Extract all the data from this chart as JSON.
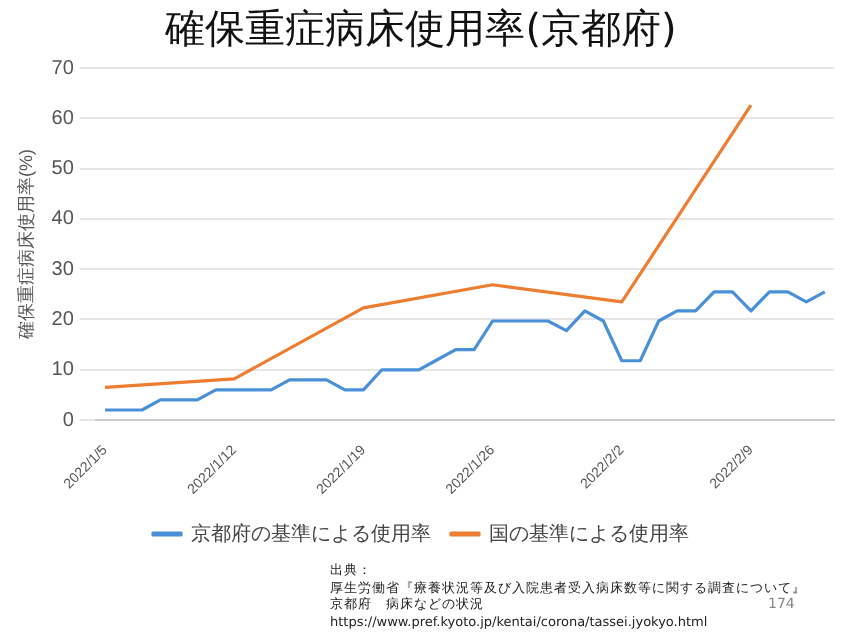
{
  "chart_data": {
    "type": "line",
    "title": "確保重症病床使用率(京都府)",
    "ylabel": "確保重症病床使用率(%)",
    "categories": [
      "2022/1/5",
      null,
      null,
      null,
      null,
      null,
      null,
      "2022/1/12",
      null,
      null,
      null,
      null,
      null,
      null,
      "2022/1/19",
      null,
      null,
      null,
      null,
      null,
      null,
      "2022/1/26",
      null,
      null,
      null,
      null,
      null,
      null,
      "2022/2/2",
      null,
      null,
      null,
      null,
      null,
      null,
      "2022/2/9",
      null,
      null,
      null,
      null
    ],
    "series": [
      {
        "name": "京都府の基準による使用率",
        "color": "#4a90d9",
        "values": [
          2,
          2,
          2,
          4,
          4,
          4,
          6,
          6,
          6,
          6,
          8,
          8,
          8,
          6,
          6,
          10,
          10,
          10,
          12,
          14,
          14,
          19.7,
          19.7,
          19.7,
          19.7,
          17.8,
          21.7,
          19.7,
          11.8,
          11.8,
          19.7,
          21.7,
          21.7,
          25.5,
          25.5,
          21.7,
          25.5,
          25.5,
          23.5,
          25.5
        ]
      },
      {
        "name": "国の基準による使用率",
        "color": "#ed7d31",
        "values": [
          6.5,
          null,
          null,
          null,
          null,
          null,
          null,
          8.2,
          null,
          null,
          null,
          null,
          null,
          null,
          22.3,
          null,
          null,
          null,
          null,
          null,
          null,
          26.9,
          null,
          null,
          null,
          null,
          null,
          null,
          23.5,
          null,
          null,
          null,
          null,
          null,
          null,
          62.6,
          null,
          null,
          null,
          null
        ]
      }
    ],
    "ylim": [
      0,
      70
    ],
    "yticks": [
      0,
      10,
      20,
      30,
      40,
      50,
      60,
      70
    ],
    "grid": "y",
    "legend": "bottom",
    "marker": "none",
    "annotations": [
      "出典：",
      "厚生労働省『療養状況等及び入院患者受入病床数等に関する調査について』",
      "京都府　病床などの状況",
      "https://www.pref.kyoto.jp/kentai/corona/tassei.jyokyo.html",
      "174"
    ]
  }
}
